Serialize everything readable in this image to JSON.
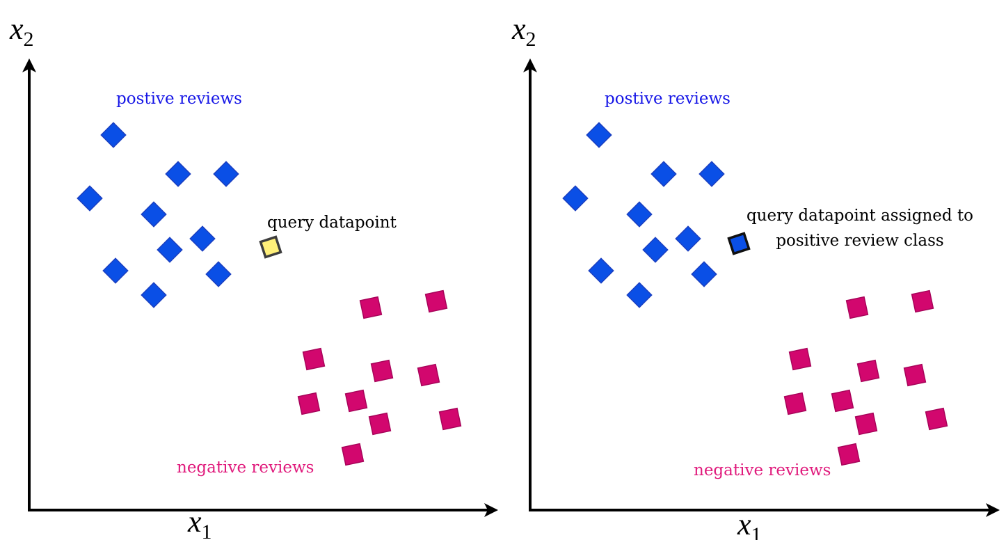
{
  "axes": {
    "x_symbol": "x",
    "x_subscript": "1",
    "y_symbol": "x",
    "y_subscript": "2"
  },
  "colors": {
    "positive": "#0a4fe6",
    "positive_stroke": "#1b3fc0",
    "negative": "#d2076e",
    "negative_stroke": "#a8045a",
    "query_before": "#fff07a",
    "query_before_stroke": "#3d3d3d",
    "query_after": "#0a4fe6",
    "query_after_stroke": "#111111",
    "positive_text": "#1515e6",
    "negative_text": "#e01a7c",
    "axis": "#000000"
  },
  "panels": [
    {
      "positive_label": "postive reviews",
      "negative_label": "negative reviews",
      "query_label_lines": [
        "query datapoint"
      ]
    },
    {
      "positive_label": "postive reviews",
      "negative_label": "negative reviews",
      "query_label_lines": [
        "query datapoint assigned to",
        "positive review class"
      ]
    }
  ]
}
